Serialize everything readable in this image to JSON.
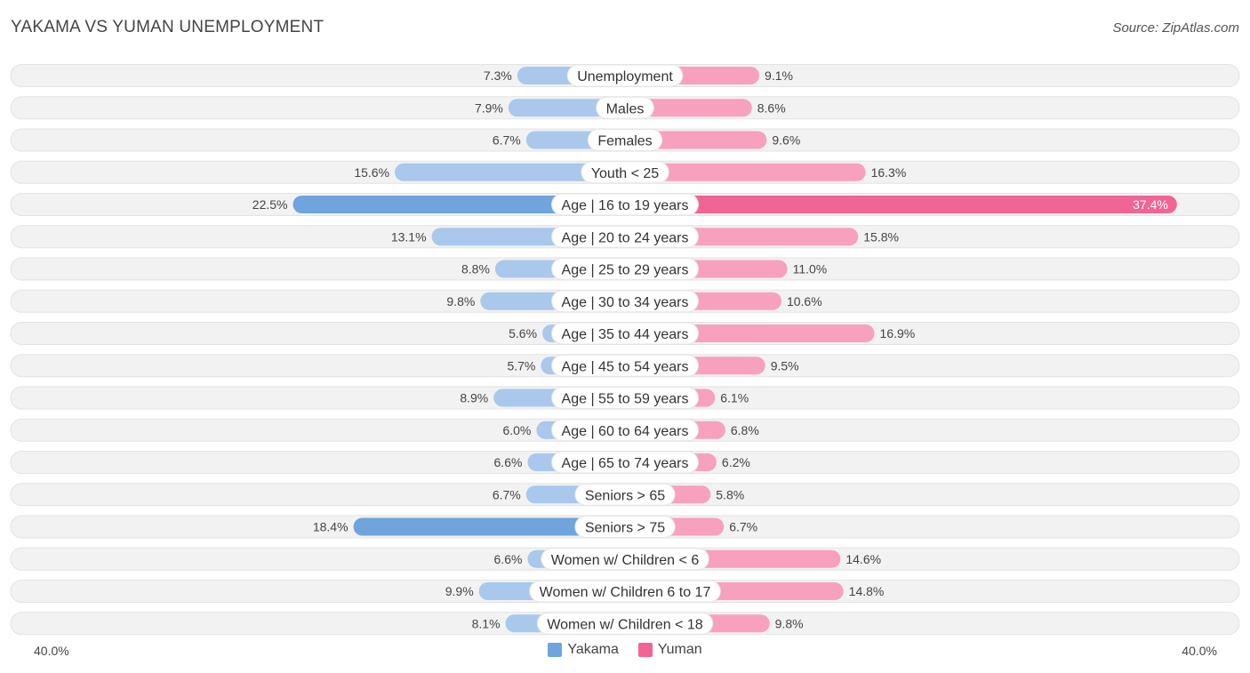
{
  "title": "YAKAMA VS YUMAN UNEMPLOYMENT",
  "source": "Source: ZipAtlas.com",
  "colors": {
    "yakama": "#6fa4dc",
    "yakama_light": "#a9c8ec",
    "yuman": "#f06595",
    "yuman_light": "#f7a1bf"
  },
  "chart_data": {
    "type": "bar",
    "orientation": "diverging-horizontal",
    "title": "YAKAMA VS YUMAN UNEMPLOYMENT",
    "categories": [
      "Unemployment",
      "Males",
      "Females",
      "Youth < 25",
      "Age | 16 to 19 years",
      "Age | 20 to 24 years",
      "Age | 25 to 29 years",
      "Age | 30 to 34 years",
      "Age | 35 to 44 years",
      "Age | 45 to 54 years",
      "Age | 55 to 59 years",
      "Age | 60 to 64 years",
      "Age | 65 to 74 years",
      "Seniors > 65",
      "Seniors > 75",
      "Women w/ Children < 6",
      "Women w/ Children 6 to 17",
      "Women w/ Children < 18"
    ],
    "series": [
      {
        "name": "Yakama",
        "values": [
          7.3,
          7.9,
          6.7,
          15.6,
          22.5,
          13.1,
          8.8,
          9.8,
          5.6,
          5.7,
          8.9,
          6.0,
          6.6,
          6.7,
          18.4,
          6.6,
          9.9,
          8.1
        ],
        "labels": [
          "7.3%",
          "7.9%",
          "6.7%",
          "15.6%",
          "22.5%",
          "13.1%",
          "8.8%",
          "9.8%",
          "5.6%",
          "5.7%",
          "8.9%",
          "6.0%",
          "6.6%",
          "6.7%",
          "18.4%",
          "6.6%",
          "9.9%",
          "8.1%"
        ]
      },
      {
        "name": "Yuman",
        "values": [
          9.1,
          8.6,
          9.6,
          16.3,
          37.4,
          15.8,
          11.0,
          10.6,
          16.9,
          9.5,
          6.1,
          6.8,
          6.2,
          5.8,
          6.7,
          14.6,
          14.8,
          9.8
        ],
        "labels": [
          "9.1%",
          "8.6%",
          "9.6%",
          "16.3%",
          "37.4%",
          "15.8%",
          "11.0%",
          "10.6%",
          "16.9%",
          "9.5%",
          "6.1%",
          "6.8%",
          "6.2%",
          "5.8%",
          "6.7%",
          "14.6%",
          "14.8%",
          "9.8%"
        ]
      }
    ],
    "xlim": [
      -40,
      40
    ],
    "axis_labels": {
      "left": "40.0%",
      "right": "40.0%"
    },
    "legend": [
      "Yakama",
      "Yuman"
    ],
    "legend_position": "bottom-center"
  }
}
